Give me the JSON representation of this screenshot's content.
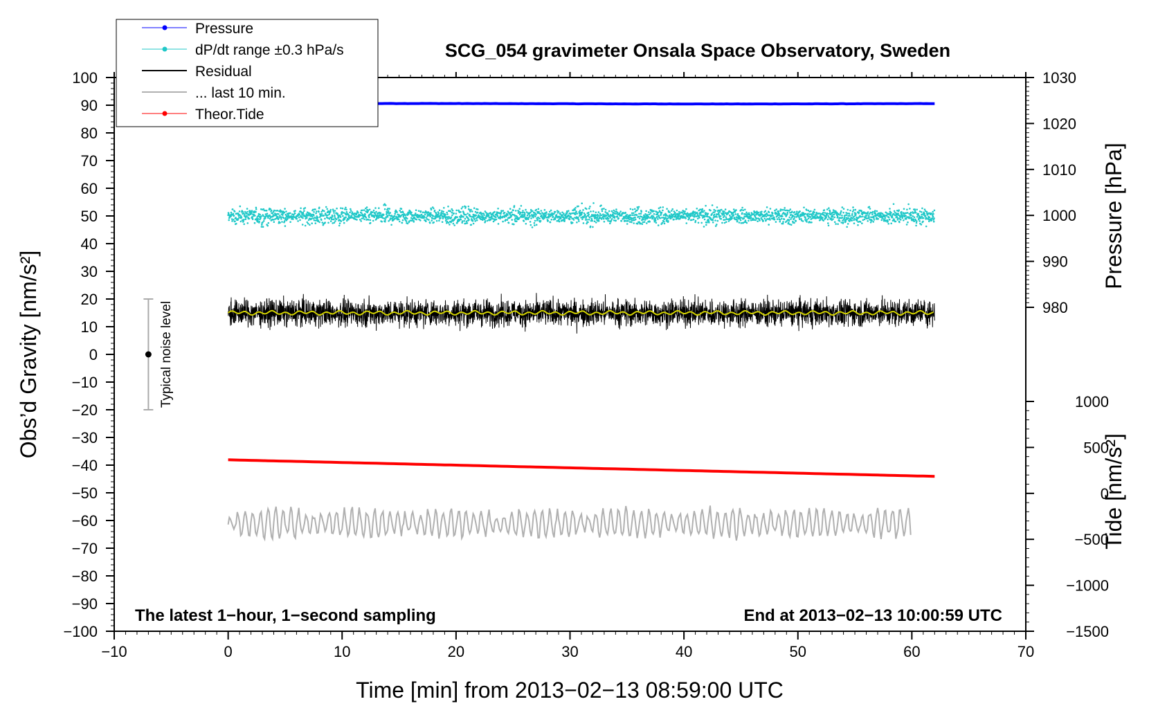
{
  "chart_data": {
    "type": "line",
    "title": "SCG_054 gravimeter Onsala Space Observatory, Sweden",
    "xlabel": "Time [min] from 2013−02−13 08:59:00 UTC",
    "ylabel_left": "Obs’d Gravity [nm/s²]",
    "ylabel_right_top": "Pressure [hPa]",
    "ylabel_right_bottom": "Tide [nm/s²]",
    "xlim": [
      -10,
      70
    ],
    "ylim": [
      -100,
      100
    ],
    "pressure_axis_lim": [
      980,
      1030
    ],
    "tide_axis_lim": [
      -1500,
      1000
    ],
    "x_ticks": [
      "−10",
      "0",
      "10",
      "20",
      "30",
      "40",
      "50",
      "60",
      "70"
    ],
    "y_ticks": [
      "−100",
      "−90",
      "−80",
      "−70",
      "−60",
      "−50",
      "−40",
      "−30",
      "−20",
      "−10",
      "0",
      "10",
      "20",
      "30",
      "40",
      "50",
      "60",
      "70",
      "80",
      "90",
      "100"
    ],
    "pressure_ticks": [
      "980",
      "990",
      "1000",
      "1010",
      "1020",
      "1030"
    ],
    "tide_ticks": [
      "−1500",
      "−1000",
      "−500",
      "0",
      "500",
      "1000"
    ],
    "grid": false,
    "legend_position": "top-left",
    "annotation_left": "The latest 1−hour, 1−second sampling",
    "annotation_right": "End at 2013−02−13 10:00:59 UTC",
    "noise_label": "Typical noise level",
    "noise_bar": {
      "x": -7,
      "center": 0,
      "low": -20,
      "high": 20
    },
    "series": [
      {
        "name": "Pressure",
        "color": "#0000ff",
        "axis": "pressure",
        "x_range": [
          0,
          62
        ],
        "level": 1024.3
      },
      {
        "name": "dP/dt range ±0.3 hPa/s",
        "color": "#20c8c8",
        "axis": "gravity",
        "x_range": [
          0,
          62
        ],
        "center": 50,
        "spread": 5
      },
      {
        "name": "Residual",
        "color": "#000000",
        "axis": "gravity",
        "x_range": [
          0,
          62
        ],
        "center": 15,
        "spread": 8
      },
      {
        "name": "... last 10 min.",
        "color": "#b0b0b0",
        "axis": "gravity",
        "x_range": [
          0,
          60
        ],
        "center": -61,
        "spread": 6
      },
      {
        "name": "Theor.Tide",
        "color": "#ff0000",
        "axis": "tide",
        "x_range": [
          0,
          62
        ],
        "start": 365,
        "end": 185
      }
    ],
    "smoothed_residual_color": "#d4d400"
  }
}
